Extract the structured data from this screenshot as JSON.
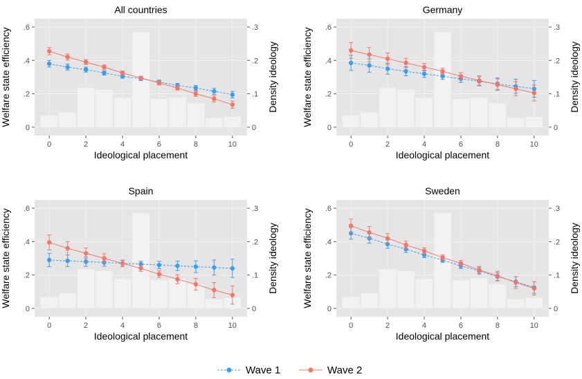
{
  "legend": {
    "placement": "bottom",
    "items": [
      {
        "label": "Wave 1",
        "color": "#3b9ded",
        "linestyle": "dashed"
      },
      {
        "label": "Wave 2",
        "color": "#f4766b",
        "linestyle": "solid"
      }
    ]
  },
  "colors": {
    "panel_bg": "#e5e5e5",
    "grid": "#f2f2f2",
    "hist_bar": "#f2f2f2",
    "wave1": "#3b9ded",
    "wave2": "#f4766b"
  },
  "chart_data": [
    {
      "type": "line",
      "title": "All countries",
      "xlabel": "Ideological placement",
      "ylabel": "Welfare state efficiency",
      "ylabel_right": "Density ideology",
      "x": [
        0,
        1,
        2,
        3,
        4,
        5,
        6,
        7,
        8,
        9,
        10
      ],
      "xticks": [
        "0",
        "2",
        "4",
        "6",
        "8",
        "10"
      ],
      "yticks": [
        "0",
        ".2",
        ".4",
        ".6"
      ],
      "yticks_right": [
        "0",
        ".1",
        ".2",
        ".3"
      ],
      "xlim": [
        -0.8,
        10.8
      ],
      "ylim": [
        -0.05,
        0.65
      ],
      "ylim_right": [
        -0.025,
        0.325
      ],
      "grid": true,
      "density": [
        0.035,
        0.045,
        0.118,
        0.112,
        0.088,
        0.285,
        0.085,
        0.09,
        0.072,
        0.028,
        0.032
      ],
      "series": [
        {
          "name": "Wave 1",
          "values": [
            0.38,
            0.36,
            0.345,
            0.325,
            0.305,
            0.29,
            0.27,
            0.25,
            0.235,
            0.215,
            0.195
          ],
          "ci": [
            0.02,
            0.018,
            0.015,
            0.013,
            0.012,
            0.01,
            0.012,
            0.013,
            0.015,
            0.018,
            0.02
          ]
        },
        {
          "name": "Wave 2",
          "values": [
            0.455,
            0.42,
            0.39,
            0.36,
            0.325,
            0.295,
            0.265,
            0.235,
            0.2,
            0.17,
            0.135
          ],
          "ci": [
            0.022,
            0.018,
            0.015,
            0.013,
            0.012,
            0.01,
            0.012,
            0.013,
            0.015,
            0.018,
            0.022
          ]
        }
      ]
    },
    {
      "type": "line",
      "title": "Germany",
      "xlabel": "Ideological placement",
      "ylabel": "Welfare state efficiency",
      "ylabel_right": "Density ideology",
      "x": [
        0,
        1,
        2,
        3,
        4,
        5,
        6,
        7,
        8,
        9,
        10
      ],
      "xticks": [
        "0",
        "2",
        "4",
        "6",
        "8",
        "10"
      ],
      "yticks": [
        "0",
        ".2",
        ".4",
        ".6"
      ],
      "yticks_right": [
        "0",
        ".1",
        ".2",
        ".3"
      ],
      "xlim": [
        -0.8,
        10.8
      ],
      "ylim": [
        -0.05,
        0.65
      ],
      "ylim_right": [
        -0.025,
        0.325
      ],
      "grid": true,
      "density": [
        0.035,
        0.045,
        0.118,
        0.112,
        0.088,
        0.285,
        0.085,
        0.09,
        0.072,
        0.028,
        0.032
      ],
      "series": [
        {
          "name": "Wave 1",
          "values": [
            0.385,
            0.37,
            0.35,
            0.335,
            0.32,
            0.305,
            0.29,
            0.275,
            0.26,
            0.245,
            0.23
          ],
          "ci": [
            0.045,
            0.04,
            0.033,
            0.027,
            0.022,
            0.018,
            0.022,
            0.027,
            0.035,
            0.042,
            0.05
          ]
        },
        {
          "name": "Wave 2",
          "values": [
            0.46,
            0.435,
            0.41,
            0.385,
            0.36,
            0.335,
            0.305,
            0.28,
            0.255,
            0.23,
            0.205
          ],
          "ci": [
            0.048,
            0.042,
            0.035,
            0.028,
            0.022,
            0.018,
            0.022,
            0.028,
            0.035,
            0.042,
            0.048
          ]
        }
      ]
    },
    {
      "type": "line",
      "title": "Spain",
      "xlabel": "Ideological placement",
      "ylabel": "Welfare state efficiency",
      "ylabel_right": "Density ideology",
      "x": [
        0,
        1,
        2,
        3,
        4,
        5,
        6,
        7,
        8,
        9,
        10
      ],
      "xticks": [
        "0",
        "2",
        "4",
        "6",
        "8",
        "10"
      ],
      "yticks": [
        "0",
        ".2",
        ".4",
        ".6"
      ],
      "yticks_right": [
        "0",
        ".1",
        ".2",
        ".3"
      ],
      "xlim": [
        -0.8,
        10.8
      ],
      "ylim": [
        -0.05,
        0.65
      ],
      "ylim_right": [
        -0.025,
        0.325
      ],
      "grid": true,
      "density": [
        0.035,
        0.045,
        0.118,
        0.112,
        0.088,
        0.285,
        0.085,
        0.09,
        0.072,
        0.028,
        0.032
      ],
      "series": [
        {
          "name": "Wave 1",
          "values": [
            0.29,
            0.285,
            0.28,
            0.275,
            0.27,
            0.265,
            0.26,
            0.255,
            0.25,
            0.245,
            0.24
          ],
          "ci": [
            0.04,
            0.035,
            0.028,
            0.022,
            0.018,
            0.018,
            0.022,
            0.028,
            0.035,
            0.045,
            0.055
          ]
        },
        {
          "name": "Wave 2",
          "values": [
            0.395,
            0.36,
            0.33,
            0.3,
            0.27,
            0.24,
            0.205,
            0.175,
            0.145,
            0.11,
            0.08
          ],
          "ci": [
            0.045,
            0.04,
            0.032,
            0.027,
            0.02,
            0.018,
            0.02,
            0.027,
            0.035,
            0.045,
            0.055
          ]
        }
      ]
    },
    {
      "type": "line",
      "title": "Sweden",
      "xlabel": "Ideological placement",
      "ylabel": "Welfare state efficiency",
      "ylabel_right": "Density ideology",
      "x": [
        0,
        1,
        2,
        3,
        4,
        5,
        6,
        7,
        8,
        9,
        10
      ],
      "xticks": [
        "0",
        "2",
        "4",
        "6",
        "8",
        "10"
      ],
      "yticks": [
        "0",
        ".2",
        ".4",
        ".6"
      ],
      "yticks_right": [
        "0",
        ".1",
        ".2",
        ".3"
      ],
      "xlim": [
        -0.8,
        10.8
      ],
      "ylim": [
        -0.05,
        0.65
      ],
      "ylim_right": [
        -0.025,
        0.325
      ],
      "grid": true,
      "density": [
        0.035,
        0.045,
        0.118,
        0.112,
        0.088,
        0.285,
        0.085,
        0.09,
        0.072,
        0.028,
        0.032
      ],
      "series": [
        {
          "name": "Wave 1",
          "values": [
            0.45,
            0.42,
            0.385,
            0.355,
            0.32,
            0.29,
            0.255,
            0.225,
            0.19,
            0.16,
            0.125
          ],
          "ci": [
            0.035,
            0.03,
            0.025,
            0.02,
            0.016,
            0.014,
            0.016,
            0.02,
            0.025,
            0.03,
            0.035
          ]
        },
        {
          "name": "Wave 2",
          "values": [
            0.495,
            0.455,
            0.42,
            0.38,
            0.345,
            0.305,
            0.27,
            0.23,
            0.195,
            0.155,
            0.12
          ],
          "ci": [
            0.04,
            0.035,
            0.028,
            0.022,
            0.018,
            0.015,
            0.018,
            0.022,
            0.028,
            0.035,
            0.04
          ]
        }
      ]
    }
  ]
}
